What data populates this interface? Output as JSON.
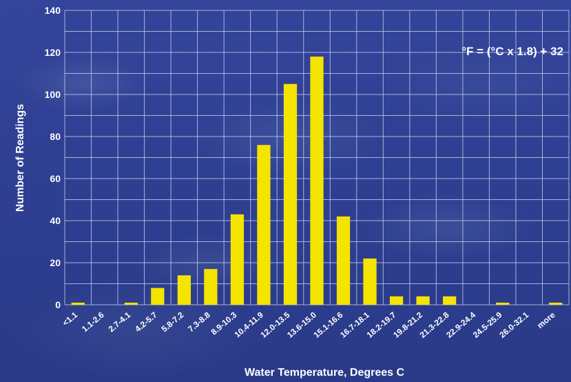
{
  "chart_data": {
    "type": "bar",
    "title": "",
    "xlabel": "Water Temperature, Degrees C",
    "ylabel": "Number of Readings",
    "annotation": "°F = (°C x 1.8) + 32",
    "ylim": [
      0,
      140
    ],
    "yticks": [
      0,
      20,
      40,
      60,
      80,
      100,
      120,
      140
    ],
    "grid": true,
    "bar_color": "#f5e300",
    "grid_color": "#c8d0ec",
    "categories": [
      "<1.1",
      "1.1-2.6",
      "2.7-4.1",
      "4.2-5.7",
      "5.8-7.2",
      "7.3-8.8",
      "8.9-10.3",
      "10.4-11.9",
      "12.0-13.5",
      "13.6-15.0",
      "15.1-16.6",
      "16.7-18.1",
      "18.2-19.7",
      "19.8-21.2",
      "21.3-22.8",
      "22.9-24.4",
      "24.5-25.9",
      "26.0-32.1",
      "more"
    ],
    "values": [
      1,
      0,
      1,
      8,
      14,
      17,
      43,
      76,
      105,
      118,
      42,
      22,
      4,
      4,
      4,
      0,
      1,
      0,
      1
    ]
  }
}
